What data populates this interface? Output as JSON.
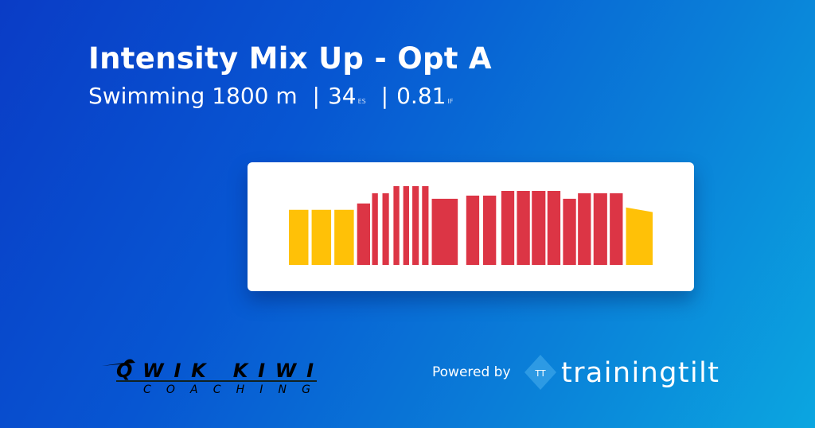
{
  "header": {
    "title": "Intensity Mix Up - Opt A",
    "sport": "Swimming 1800 m",
    "es_value": "34",
    "es_label": "ES",
    "if_value": "0.81",
    "if_label": "IF",
    "separator": "|"
  },
  "footer": {
    "coach_logo_line1": "QWIK KIWI",
    "coach_logo_line2": "COACHING",
    "powered_by": "Powered by",
    "brand_logo_mark": "TT",
    "brand_name": "trainingtilt"
  },
  "colors": {
    "easy": "#ffc107",
    "hard": "#dc3545",
    "card": "#ffffff"
  },
  "chart_data": {
    "type": "bar",
    "title": "",
    "xlabel": "",
    "ylabel": "",
    "xlim": [
      0,
      56
    ],
    "ylim": [
      0,
      1
    ],
    "grid": false,
    "bars": [
      {
        "start": 0,
        "end": 3.0,
        "intensity": 0.7,
        "zone": "easy"
      },
      {
        "start": 3.5,
        "end": 6.5,
        "intensity": 0.7,
        "zone": "easy"
      },
      {
        "start": 7.0,
        "end": 10.0,
        "intensity": 0.7,
        "zone": "easy"
      },
      {
        "start": 10.5,
        "end": 12.5,
        "intensity": 0.78,
        "zone": "hard"
      },
      {
        "start": 12.8,
        "end": 13.7,
        "intensity": 0.91,
        "zone": "hard"
      },
      {
        "start": 14.4,
        "end": 15.4,
        "intensity": 0.91,
        "zone": "hard"
      },
      {
        "start": 16.1,
        "end": 17.0,
        "intensity": 1.0,
        "zone": "hard"
      },
      {
        "start": 17.6,
        "end": 18.5,
        "intensity": 1.0,
        "zone": "hard"
      },
      {
        "start": 19.0,
        "end": 20.0,
        "intensity": 1.0,
        "zone": "hard"
      },
      {
        "start": 20.5,
        "end": 21.5,
        "intensity": 1.0,
        "zone": "hard"
      },
      {
        "start": 22.0,
        "end": 26.0,
        "intensity": 0.84,
        "zone": "hard"
      },
      {
        "start": 27.3,
        "end": 29.3,
        "intensity": 0.88,
        "zone": "hard"
      },
      {
        "start": 29.9,
        "end": 31.9,
        "intensity": 0.88,
        "zone": "hard"
      },
      {
        "start": 32.7,
        "end": 34.7,
        "intensity": 0.94,
        "zone": "hard"
      },
      {
        "start": 35.1,
        "end": 37.1,
        "intensity": 0.94,
        "zone": "hard"
      },
      {
        "start": 37.4,
        "end": 39.5,
        "intensity": 0.94,
        "zone": "hard"
      },
      {
        "start": 39.8,
        "end": 41.8,
        "intensity": 0.94,
        "zone": "hard"
      },
      {
        "start": 42.2,
        "end": 44.2,
        "intensity": 0.84,
        "zone": "hard"
      },
      {
        "start": 44.5,
        "end": 46.5,
        "intensity": 0.91,
        "zone": "hard"
      },
      {
        "start": 46.9,
        "end": 49.0,
        "intensity": 0.91,
        "zone": "hard"
      },
      {
        "start": 49.4,
        "end": 51.4,
        "intensity": 0.91,
        "zone": "hard"
      },
      {
        "start": 51.9,
        "end": 56.0,
        "intensity": 0.73,
        "intensity_end": 0.67,
        "zone": "easy"
      }
    ]
  }
}
